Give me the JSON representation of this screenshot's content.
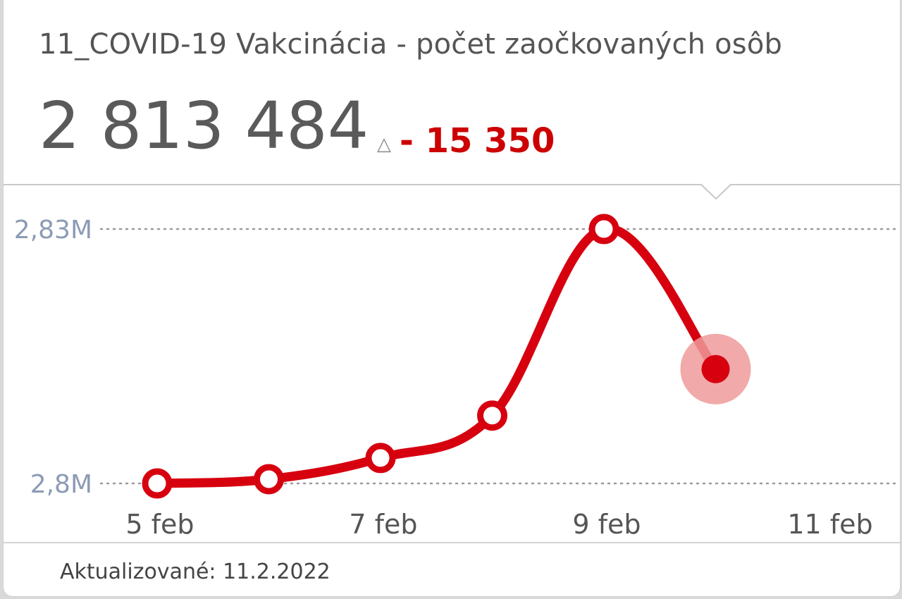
{
  "header": {
    "title": "11_COVID-19 Vakcinácia - počet zaočkovaných osôb",
    "value": "2 813 484",
    "delta_symbol": "△",
    "delta": "- 15 350"
  },
  "footer": {
    "updated": "Aktualizované: 11.2.2022"
  },
  "colors": {
    "line": "#d6000f",
    "highlight": "#ef9a9a",
    "axis_label": "#8c9bb5",
    "tick_label": "#555555",
    "delta": "#cc0000"
  },
  "chart_data": {
    "type": "line",
    "title": "",
    "xlabel": "",
    "ylabel": "",
    "x": [
      "5 feb",
      "6 feb",
      "7 feb",
      "8 feb",
      "9 feb",
      "10 feb"
    ],
    "values": [
      2800000,
      2800500,
      2803000,
      2808000,
      2830000,
      2813484
    ],
    "x_tick_labels": [
      "5 feb",
      "7 feb",
      "9 feb",
      "11 feb"
    ],
    "y_tick_labels": [
      "2,83M",
      "2,8M"
    ],
    "y_ticks": [
      2830000,
      2800000
    ],
    "ylim": [
      2800000,
      2830000
    ],
    "highlighted_index": 5,
    "grid": "horizontal-dotted"
  }
}
